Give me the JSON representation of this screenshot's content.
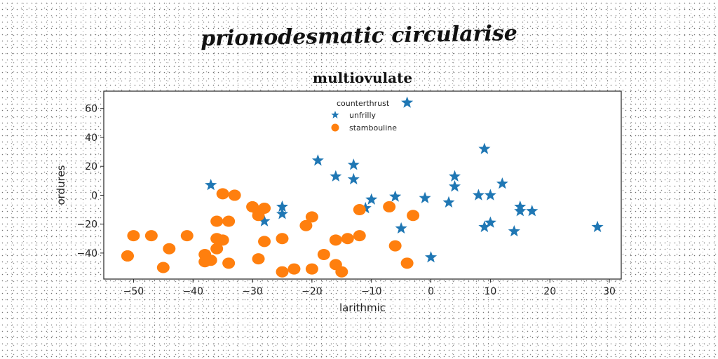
{
  "figure_title": "prionodesmatic circularise",
  "chart_data": {
    "type": "scatter",
    "title": "multiovulate",
    "xlabel": "larithmic",
    "ylabel": "ordures",
    "xlim": [
      -55,
      32
    ],
    "ylim": [
      -58,
      72
    ],
    "x_ticks": [
      -50,
      -40,
      -30,
      -20,
      -10,
      0,
      10,
      20,
      30
    ],
    "x_tick_labels": [
      "−50",
      "−40",
      "−30",
      "−20",
      "−10",
      "0",
      "10",
      "20",
      "30"
    ],
    "y_ticks": [
      -40,
      -20,
      0,
      20,
      40,
      60
    ],
    "y_tick_labels": [
      "−40",
      "−20",
      "0",
      "20",
      "40",
      "60"
    ],
    "grid": false,
    "legend": {
      "title": "counterthrust",
      "placement": "top-center"
    },
    "series": [
      {
        "name": "unfrilly",
        "marker": "star",
        "color": "#1f77b4",
        "points": [
          [
            -37,
            7
          ],
          [
            -28,
            -18
          ],
          [
            -25,
            -8
          ],
          [
            -25,
            -13
          ],
          [
            -19,
            24
          ],
          [
            -16,
            13
          ],
          [
            -13,
            21
          ],
          [
            -13,
            11
          ],
          [
            -11,
            -9
          ],
          [
            -10,
            -3
          ],
          [
            -6,
            -1
          ],
          [
            -5,
            -23
          ],
          [
            -4,
            64
          ],
          [
            -1,
            -2
          ],
          [
            0,
            -43
          ],
          [
            3,
            -5
          ],
          [
            4,
            13
          ],
          [
            4,
            6
          ],
          [
            8,
            0
          ],
          [
            9,
            32
          ],
          [
            9,
            -22
          ],
          [
            10,
            0
          ],
          [
            10,
            -19
          ],
          [
            12,
            8
          ],
          [
            14,
            -25
          ],
          [
            15,
            -8
          ],
          [
            15,
            -11
          ],
          [
            17,
            -11
          ],
          [
            28,
            -22
          ]
        ]
      },
      {
        "name": "stambouline",
        "color": "#ff7f0e",
        "marker": "circle",
        "points": [
          [
            -51,
            -42
          ],
          [
            -51,
            -42
          ],
          [
            -50,
            -28
          ],
          [
            -47,
            -28
          ],
          [
            -45,
            -50
          ],
          [
            -44,
            -37
          ],
          [
            -41,
            -28
          ],
          [
            -38,
            -46
          ],
          [
            -38,
            -41
          ],
          [
            -37,
            -45
          ],
          [
            -36,
            -30
          ],
          [
            -36,
            -37
          ],
          [
            -36,
            -18
          ],
          [
            -35,
            -31
          ],
          [
            -35,
            1
          ],
          [
            -34,
            -47
          ],
          [
            -34,
            -18
          ],
          [
            -33,
            0
          ],
          [
            -30,
            -8
          ],
          [
            -29,
            -14
          ],
          [
            -29,
            -44
          ],
          [
            -29,
            -11
          ],
          [
            -28,
            -32
          ],
          [
            -28,
            -9
          ],
          [
            -25,
            -30
          ],
          [
            -25,
            -53
          ],
          [
            -23,
            -51
          ],
          [
            -21,
            -21
          ],
          [
            -20,
            -15
          ],
          [
            -20,
            -51
          ],
          [
            -18,
            -41
          ],
          [
            -16,
            -48
          ],
          [
            -16,
            -31
          ],
          [
            -15,
            -53
          ],
          [
            -14,
            -30
          ],
          [
            -12,
            -28
          ],
          [
            -12,
            -10
          ],
          [
            -7,
            -8
          ],
          [
            -6,
            -35
          ],
          [
            -4,
            -47
          ],
          [
            -3,
            -14
          ]
        ]
      }
    ]
  }
}
